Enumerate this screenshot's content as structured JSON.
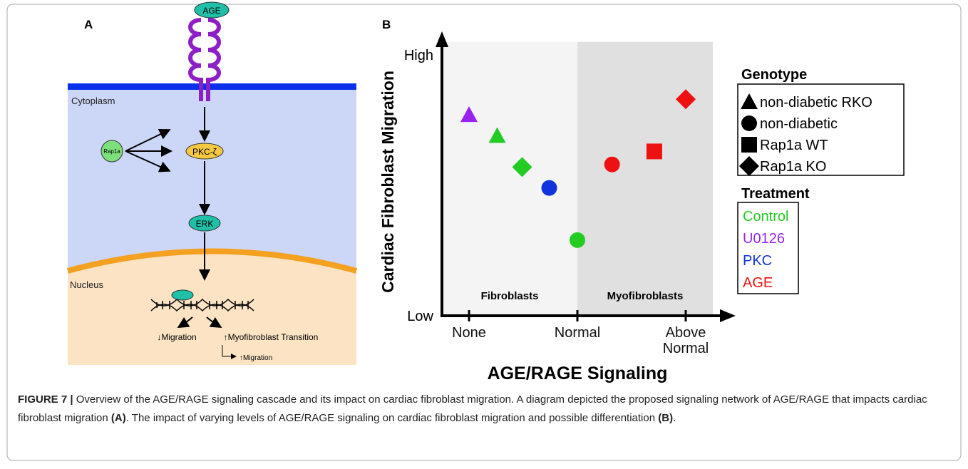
{
  "panel_a": {
    "label": "A",
    "nodes": {
      "age": "AGE",
      "cytoplasm": "Cytoplasm",
      "rap1a": "Rap1a",
      "pkc": "PKC-ζ",
      "erk": "ERK",
      "nucleus": "Nucleus",
      "migration_down": "↓Migration",
      "transition": "↑Myofibroblast Transition",
      "migration_up": "↑Migration"
    }
  },
  "chart_data": {
    "type": "scatter",
    "panel_label": "B",
    "xlabel": "AGE/RAGE Signaling",
    "ylabel": "Cardiac Fibroblast Migration",
    "xlim": [
      -0.25,
      2.25
    ],
    "ylim": [
      0,
      1.05
    ],
    "xticks": [
      {
        "value": 0,
        "label": "None"
      },
      {
        "value": 1,
        "label": "Normal"
      },
      {
        "value": 2,
        "label": "Above Normal"
      }
    ],
    "yticks": [
      {
        "value": 0,
        "label": "Low"
      },
      {
        "value": 1,
        "label": "High"
      }
    ],
    "regions": [
      {
        "label": "Fibroblasts",
        "from": -0.25,
        "to": 1,
        "color": "#f4f4f4"
      },
      {
        "label": "Myofibroblasts",
        "from": 1,
        "to": 2.25,
        "color": "#e0e0e0"
      }
    ],
    "genotype_title": "Genotype",
    "genotypes": [
      {
        "name": "non-diabetic RKO",
        "marker": "triangle"
      },
      {
        "name": "non-diabetic",
        "marker": "circle"
      },
      {
        "name": "Rap1a WT",
        "marker": "square"
      },
      {
        "name": "Rap1a KO",
        "marker": "diamond"
      }
    ],
    "treatment_title": "Treatment",
    "series": [
      {
        "name": "Control",
        "color": "#22cc22",
        "x": [
          0.26,
          0.49,
          1.0
        ],
        "y": [
          0.69,
          0.57,
          0.29
        ],
        "markers": [
          "triangle",
          "diamond",
          "circle"
        ]
      },
      {
        "name": "U0126",
        "color": "#9922ee",
        "x": [
          0
        ],
        "y": [
          0.77
        ],
        "markers": [
          "triangle"
        ]
      },
      {
        "name": "PKC",
        "color": "#1133dd",
        "x": [
          0.74
        ],
        "y": [
          0.49
        ],
        "markers": [
          "circle"
        ]
      },
      {
        "name": "AGE",
        "color": "#ee1111",
        "x": [
          1.32,
          1.71,
          2.0
        ],
        "y": [
          0.58,
          0.63,
          0.83
        ],
        "markers": [
          "circle",
          "square",
          "diamond"
        ]
      }
    ]
  },
  "caption": {
    "label": "FIGURE 7 |",
    "text_1": " Overview of the AGE/RAGE signaling cascade and its impact on cardiac fibroblast migration. A diagram depicted the proposed signaling network of AGE/RAGE that impacts cardiac fibroblast migration ",
    "ref_a": "(A)",
    "text_2": ". The impact of varying levels of AGE/RAGE signaling on cardiac fibroblast migration and possible differentiation ",
    "ref_b": "(B)",
    "text_3": "."
  }
}
